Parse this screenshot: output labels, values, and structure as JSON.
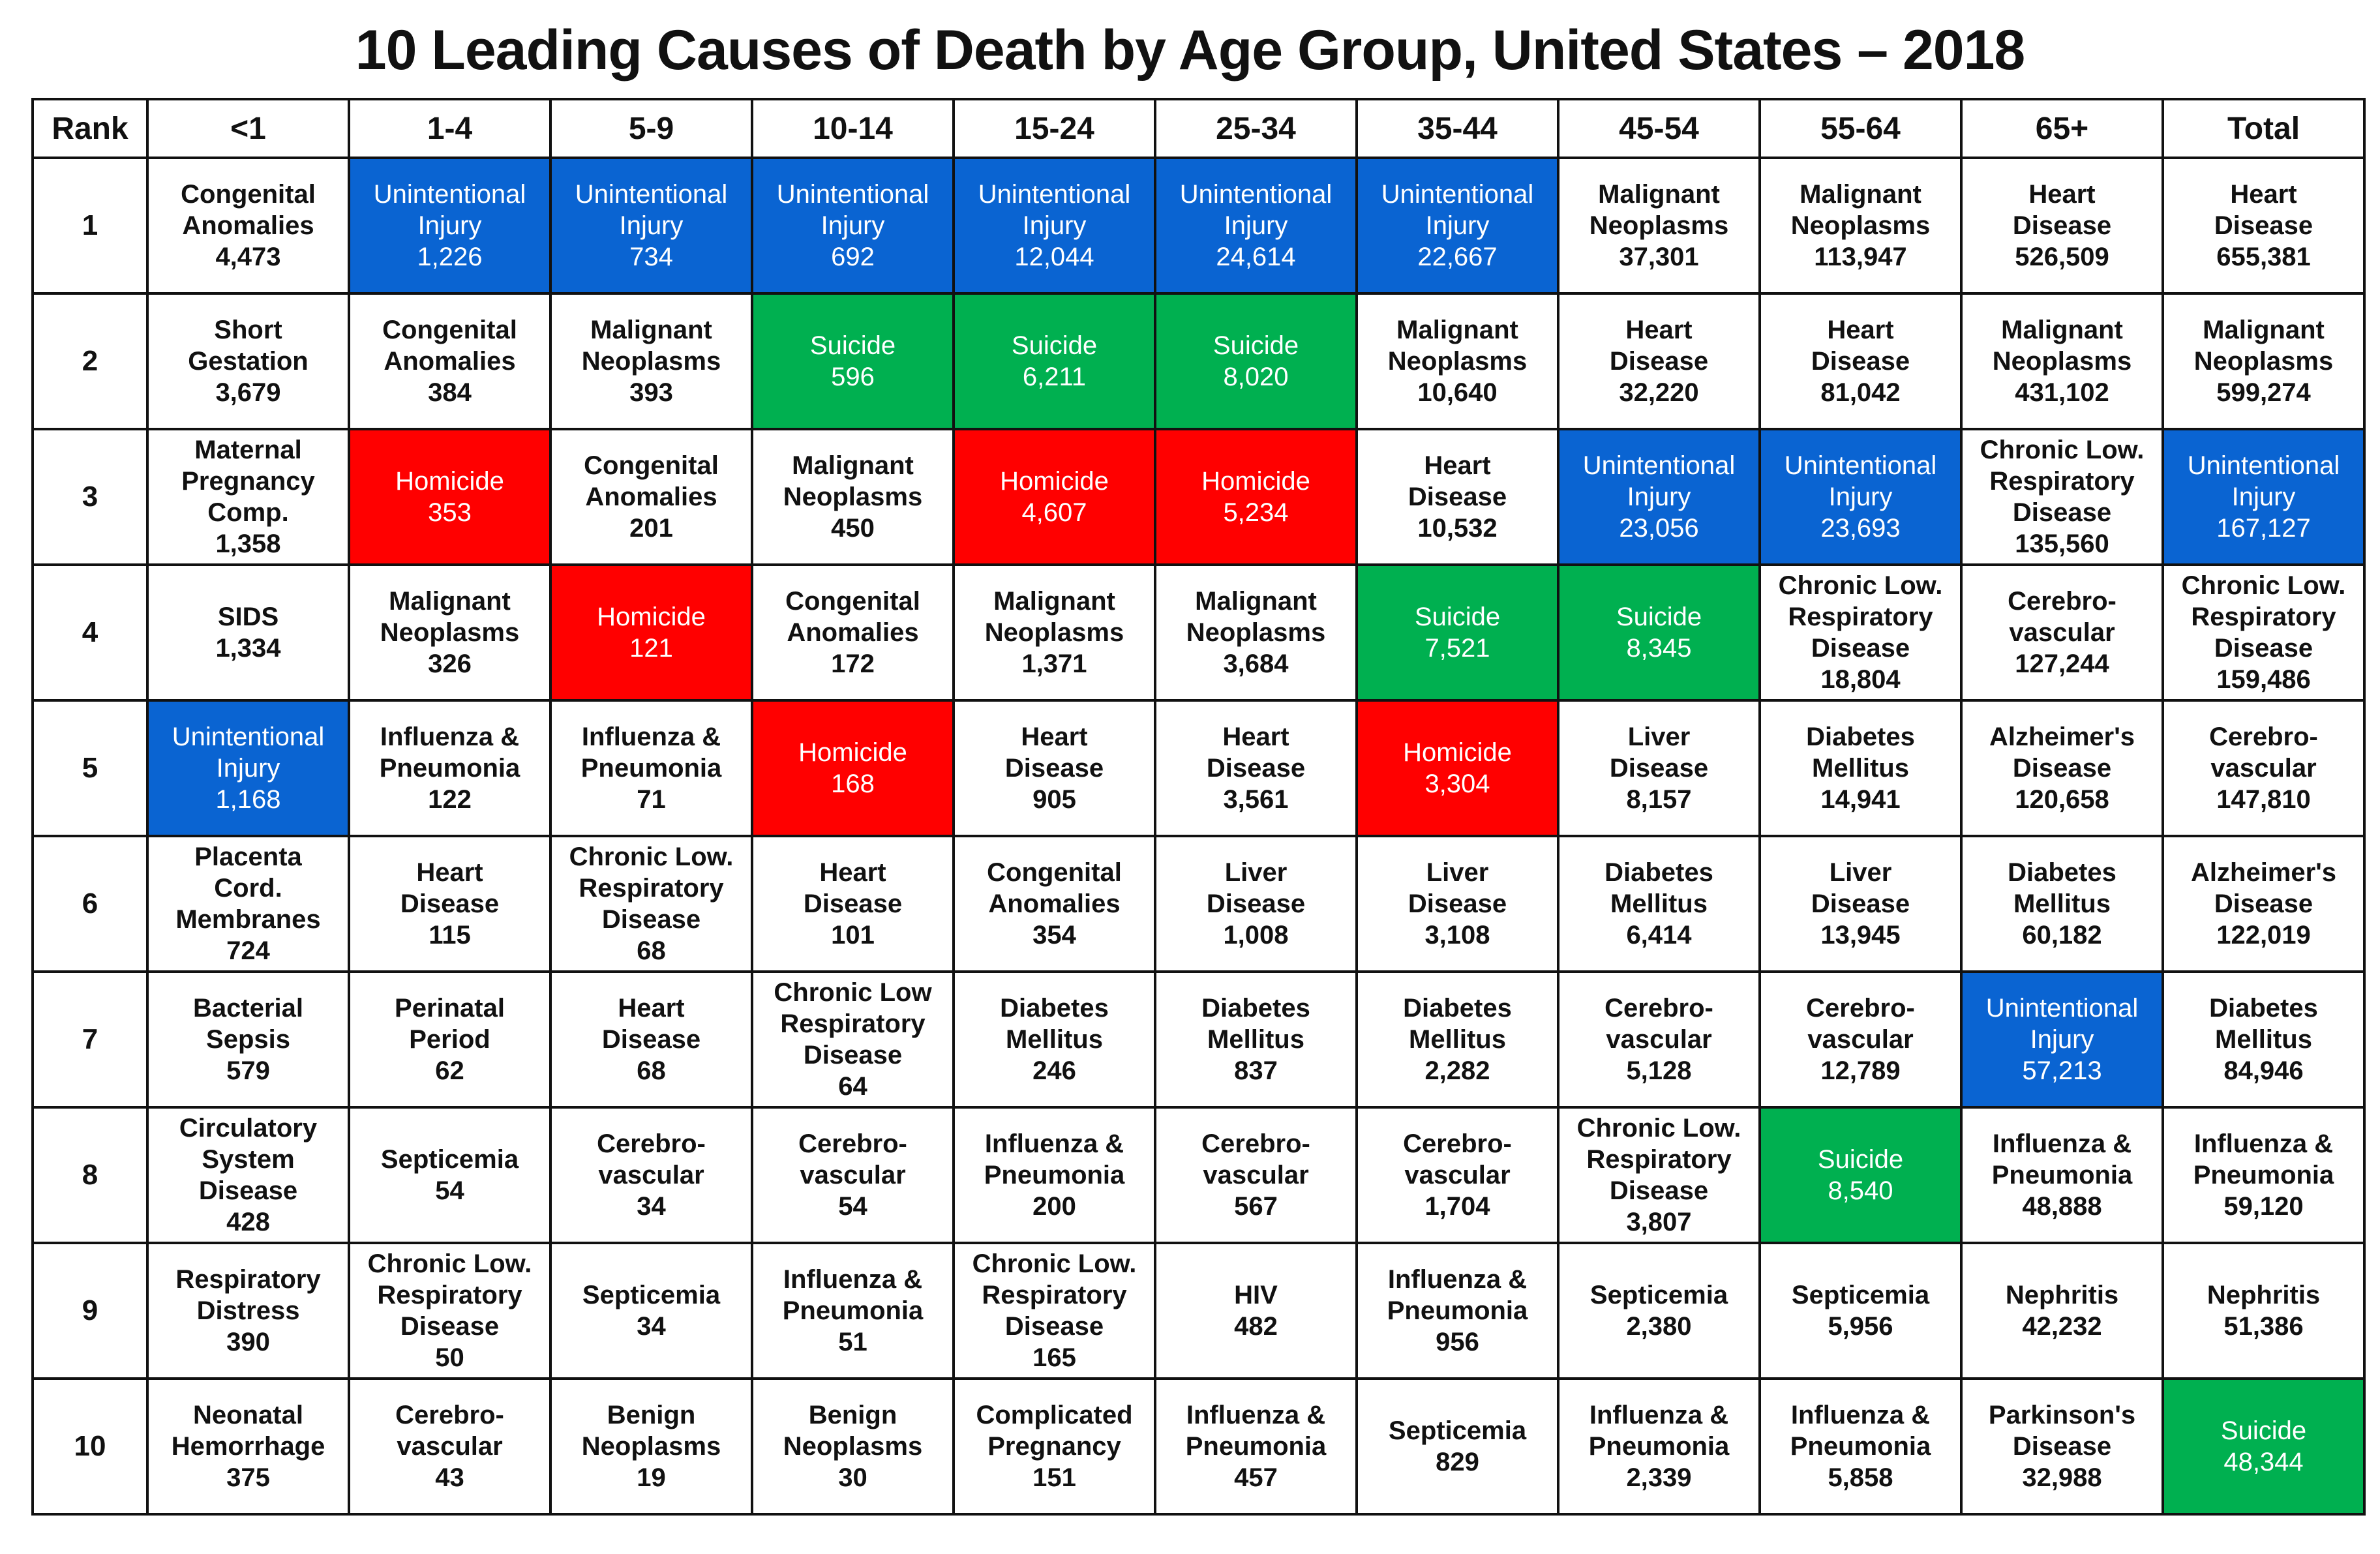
{
  "chart_data": {
    "type": "table",
    "title": "10 Leading Causes of Death by Age Group, United States – 2018",
    "rank_header": "Rank",
    "columns": [
      "<1",
      "1-4",
      "5-9",
      "10-14",
      "15-24",
      "25-34",
      "35-44",
      "45-54",
      "55-64",
      "65+",
      "Total"
    ],
    "rows": [
      {
        "rank": "1",
        "cells": [
          {
            "cause": "Congenital\nAnomalies",
            "deaths": "4,473",
            "category": "none"
          },
          {
            "cause": "Unintentional\nInjury",
            "deaths": "1,226",
            "category": "unintentional"
          },
          {
            "cause": "Unintentional\nInjury",
            "deaths": "734",
            "category": "unintentional"
          },
          {
            "cause": "Unintentional\nInjury",
            "deaths": "692",
            "category": "unintentional"
          },
          {
            "cause": "Unintentional\nInjury",
            "deaths": "12,044",
            "category": "unintentional"
          },
          {
            "cause": "Unintentional\nInjury",
            "deaths": "24,614",
            "category": "unintentional"
          },
          {
            "cause": "Unintentional\nInjury",
            "deaths": "22,667",
            "category": "unintentional"
          },
          {
            "cause": "Malignant\nNeoplasms",
            "deaths": "37,301",
            "category": "none"
          },
          {
            "cause": "Malignant\nNeoplasms",
            "deaths": "113,947",
            "category": "none"
          },
          {
            "cause": "Heart\nDisease",
            "deaths": "526,509",
            "category": "none"
          },
          {
            "cause": "Heart\nDisease",
            "deaths": "655,381",
            "category": "none"
          }
        ]
      },
      {
        "rank": "2",
        "cells": [
          {
            "cause": "Short\nGestation",
            "deaths": "3,679",
            "category": "none"
          },
          {
            "cause": "Congenital\nAnomalies",
            "deaths": "384",
            "category": "none"
          },
          {
            "cause": "Malignant\nNeoplasms",
            "deaths": "393",
            "category": "none"
          },
          {
            "cause": "Suicide",
            "deaths": "596",
            "category": "suicide"
          },
          {
            "cause": "Suicide",
            "deaths": "6,211",
            "category": "suicide"
          },
          {
            "cause": "Suicide",
            "deaths": "8,020",
            "category": "suicide"
          },
          {
            "cause": "Malignant\nNeoplasms",
            "deaths": "10,640",
            "category": "none"
          },
          {
            "cause": "Heart\nDisease",
            "deaths": "32,220",
            "category": "none"
          },
          {
            "cause": "Heart\nDisease",
            "deaths": "81,042",
            "category": "none"
          },
          {
            "cause": "Malignant\nNeoplasms",
            "deaths": "431,102",
            "category": "none"
          },
          {
            "cause": "Malignant\nNeoplasms",
            "deaths": "599,274",
            "category": "none"
          }
        ]
      },
      {
        "rank": "3",
        "cells": [
          {
            "cause": "Maternal\nPregnancy\nComp.",
            "deaths": "1,358",
            "category": "none"
          },
          {
            "cause": "Homicide",
            "deaths": "353",
            "category": "homicide"
          },
          {
            "cause": "Congenital\nAnomalies",
            "deaths": "201",
            "category": "none"
          },
          {
            "cause": "Malignant\nNeoplasms",
            "deaths": "450",
            "category": "none"
          },
          {
            "cause": "Homicide",
            "deaths": "4,607",
            "category": "homicide"
          },
          {
            "cause": "Homicide",
            "deaths": "5,234",
            "category": "homicide"
          },
          {
            "cause": "Heart\nDisease",
            "deaths": "10,532",
            "category": "none"
          },
          {
            "cause": "Unintentional\nInjury",
            "deaths": "23,056",
            "category": "unintentional"
          },
          {
            "cause": "Unintentional\nInjury",
            "deaths": "23,693",
            "category": "unintentional"
          },
          {
            "cause": "Chronic Low.\nRespiratory\nDisease",
            "deaths": "135,560",
            "category": "none"
          },
          {
            "cause": "Unintentional\nInjury",
            "deaths": "167,127",
            "category": "unintentional"
          }
        ]
      },
      {
        "rank": "4",
        "cells": [
          {
            "cause": "SIDS",
            "deaths": "1,334",
            "category": "none"
          },
          {
            "cause": "Malignant\nNeoplasms",
            "deaths": "326",
            "category": "none"
          },
          {
            "cause": "Homicide",
            "deaths": "121",
            "category": "homicide"
          },
          {
            "cause": "Congenital\nAnomalies",
            "deaths": "172",
            "category": "none"
          },
          {
            "cause": "Malignant\nNeoplasms",
            "deaths": "1,371",
            "category": "none"
          },
          {
            "cause": "Malignant\nNeoplasms",
            "deaths": "3,684",
            "category": "none"
          },
          {
            "cause": "Suicide",
            "deaths": "7,521",
            "category": "suicide"
          },
          {
            "cause": "Suicide",
            "deaths": "8,345",
            "category": "suicide"
          },
          {
            "cause": "Chronic Low.\nRespiratory\nDisease",
            "deaths": "18,804",
            "category": "none"
          },
          {
            "cause": "Cerebro-\nvascular",
            "deaths": "127,244",
            "category": "none"
          },
          {
            "cause": "Chronic Low.\nRespiratory\nDisease",
            "deaths": "159,486",
            "category": "none"
          }
        ]
      },
      {
        "rank": "5",
        "cells": [
          {
            "cause": "Unintentional\nInjury",
            "deaths": "1,168",
            "category": "unintentional"
          },
          {
            "cause": "Influenza &\nPneumonia",
            "deaths": "122",
            "category": "none"
          },
          {
            "cause": "Influenza &\nPneumonia",
            "deaths": "71",
            "category": "none"
          },
          {
            "cause": "Homicide",
            "deaths": "168",
            "category": "homicide"
          },
          {
            "cause": "Heart\nDisease",
            "deaths": "905",
            "category": "none"
          },
          {
            "cause": "Heart\nDisease",
            "deaths": "3,561",
            "category": "none"
          },
          {
            "cause": "Homicide",
            "deaths": "3,304",
            "category": "homicide"
          },
          {
            "cause": "Liver\nDisease",
            "deaths": "8,157",
            "category": "none"
          },
          {
            "cause": "Diabetes\nMellitus",
            "deaths": "14,941",
            "category": "none"
          },
          {
            "cause": "Alzheimer's\nDisease",
            "deaths": "120,658",
            "category": "none"
          },
          {
            "cause": "Cerebro-\nvascular",
            "deaths": "147,810",
            "category": "none"
          }
        ]
      },
      {
        "rank": "6",
        "cells": [
          {
            "cause": "Placenta\nCord.\nMembranes",
            "deaths": "724",
            "category": "none"
          },
          {
            "cause": "Heart\nDisease",
            "deaths": "115",
            "category": "none"
          },
          {
            "cause": "Chronic Low.\nRespiratory\nDisease",
            "deaths": "68",
            "category": "none"
          },
          {
            "cause": "Heart\nDisease",
            "deaths": "101",
            "category": "none"
          },
          {
            "cause": "Congenital\nAnomalies",
            "deaths": "354",
            "category": "none"
          },
          {
            "cause": "Liver\nDisease",
            "deaths": "1,008",
            "category": "none"
          },
          {
            "cause": "Liver\nDisease",
            "deaths": "3,108",
            "category": "none"
          },
          {
            "cause": "Diabetes\nMellitus",
            "deaths": "6,414",
            "category": "none"
          },
          {
            "cause": "Liver\nDisease",
            "deaths": "13,945",
            "category": "none"
          },
          {
            "cause": "Diabetes\nMellitus",
            "deaths": "60,182",
            "category": "none"
          },
          {
            "cause": "Alzheimer's\nDisease",
            "deaths": "122,019",
            "category": "none"
          }
        ]
      },
      {
        "rank": "7",
        "cells": [
          {
            "cause": "Bacterial\nSepsis",
            "deaths": "579",
            "category": "none"
          },
          {
            "cause": "Perinatal\nPeriod",
            "deaths": "62",
            "category": "none"
          },
          {
            "cause": "Heart\nDisease",
            "deaths": "68",
            "category": "none"
          },
          {
            "cause": "Chronic Low\nRespiratory\nDisease",
            "deaths": "64",
            "category": "none"
          },
          {
            "cause": "Diabetes\nMellitus",
            "deaths": "246",
            "category": "none"
          },
          {
            "cause": "Diabetes\nMellitus",
            "deaths": "837",
            "category": "none"
          },
          {
            "cause": "Diabetes\nMellitus",
            "deaths": "2,282",
            "category": "none"
          },
          {
            "cause": "Cerebro-\nvascular",
            "deaths": "5,128",
            "category": "none"
          },
          {
            "cause": "Cerebro-\nvascular",
            "deaths": "12,789",
            "category": "none"
          },
          {
            "cause": "Unintentional\nInjury",
            "deaths": "57,213",
            "category": "unintentional"
          },
          {
            "cause": "Diabetes\nMellitus",
            "deaths": "84,946",
            "category": "none"
          }
        ]
      },
      {
        "rank": "8",
        "cells": [
          {
            "cause": "Circulatory\nSystem\nDisease",
            "deaths": "428",
            "category": "none"
          },
          {
            "cause": "Septicemia",
            "deaths": "54",
            "category": "none"
          },
          {
            "cause": "Cerebro-\nvascular",
            "deaths": "34",
            "category": "none"
          },
          {
            "cause": "Cerebro-\nvascular",
            "deaths": "54",
            "category": "none"
          },
          {
            "cause": "Influenza &\nPneumonia",
            "deaths": "200",
            "category": "none"
          },
          {
            "cause": "Cerebro-\nvascular",
            "deaths": "567",
            "category": "none"
          },
          {
            "cause": "Cerebro-\nvascular",
            "deaths": "1,704",
            "category": "none"
          },
          {
            "cause": "Chronic Low.\nRespiratory\nDisease",
            "deaths": "3,807",
            "category": "none"
          },
          {
            "cause": "Suicide",
            "deaths": "8,540",
            "category": "suicide"
          },
          {
            "cause": "Influenza &\nPneumonia",
            "deaths": "48,888",
            "category": "none"
          },
          {
            "cause": "Influenza &\nPneumonia",
            "deaths": "59,120",
            "category": "none"
          }
        ]
      },
      {
        "rank": "9",
        "cells": [
          {
            "cause": "Respiratory\nDistress",
            "deaths": "390",
            "category": "none"
          },
          {
            "cause": "Chronic Low.\nRespiratory\nDisease",
            "deaths": "50",
            "category": "none"
          },
          {
            "cause": "Septicemia",
            "deaths": "34",
            "category": "none"
          },
          {
            "cause": "Influenza &\nPneumonia",
            "deaths": "51",
            "category": "none"
          },
          {
            "cause": "Chronic Low.\nRespiratory\nDisease",
            "deaths": "165",
            "category": "none"
          },
          {
            "cause": "HIV",
            "deaths": "482",
            "category": "none"
          },
          {
            "cause": "Influenza &\nPneumonia",
            "deaths": "956",
            "category": "none"
          },
          {
            "cause": "Septicemia",
            "deaths": "2,380",
            "category": "none"
          },
          {
            "cause": "Septicemia",
            "deaths": "5,956",
            "category": "none"
          },
          {
            "cause": "Nephritis",
            "deaths": "42,232",
            "category": "none"
          },
          {
            "cause": "Nephritis",
            "deaths": "51,386",
            "category": "none"
          }
        ]
      },
      {
        "rank": "10",
        "cells": [
          {
            "cause": "Neonatal\nHemorrhage",
            "deaths": "375",
            "category": "none"
          },
          {
            "cause": "Cerebro-\nvascular",
            "deaths": "43",
            "category": "none"
          },
          {
            "cause": "Benign\nNeoplasms",
            "deaths": "19",
            "category": "none"
          },
          {
            "cause": "Benign\nNeoplasms",
            "deaths": "30",
            "category": "none"
          },
          {
            "cause": "Complicated\nPregnancy",
            "deaths": "151",
            "category": "none"
          },
          {
            "cause": "Influenza &\nPneumonia",
            "deaths": "457",
            "category": "none"
          },
          {
            "cause": "Septicemia",
            "deaths": "829",
            "category": "none"
          },
          {
            "cause": "Influenza &\nPneumonia",
            "deaths": "2,339",
            "category": "none"
          },
          {
            "cause": "Influenza &\nPneumonia",
            "deaths": "5,858",
            "category": "none"
          },
          {
            "cause": "Parkinson's\nDisease",
            "deaths": "32,988",
            "category": "none"
          },
          {
            "cause": "Suicide",
            "deaths": "48,344",
            "category": "suicide"
          }
        ]
      }
    ]
  },
  "colors": {
    "unintentional": "#0a64d2",
    "suicide": "#00b050",
    "homicide": "#ff0000",
    "none": "#ffffff",
    "border": "#111111"
  }
}
